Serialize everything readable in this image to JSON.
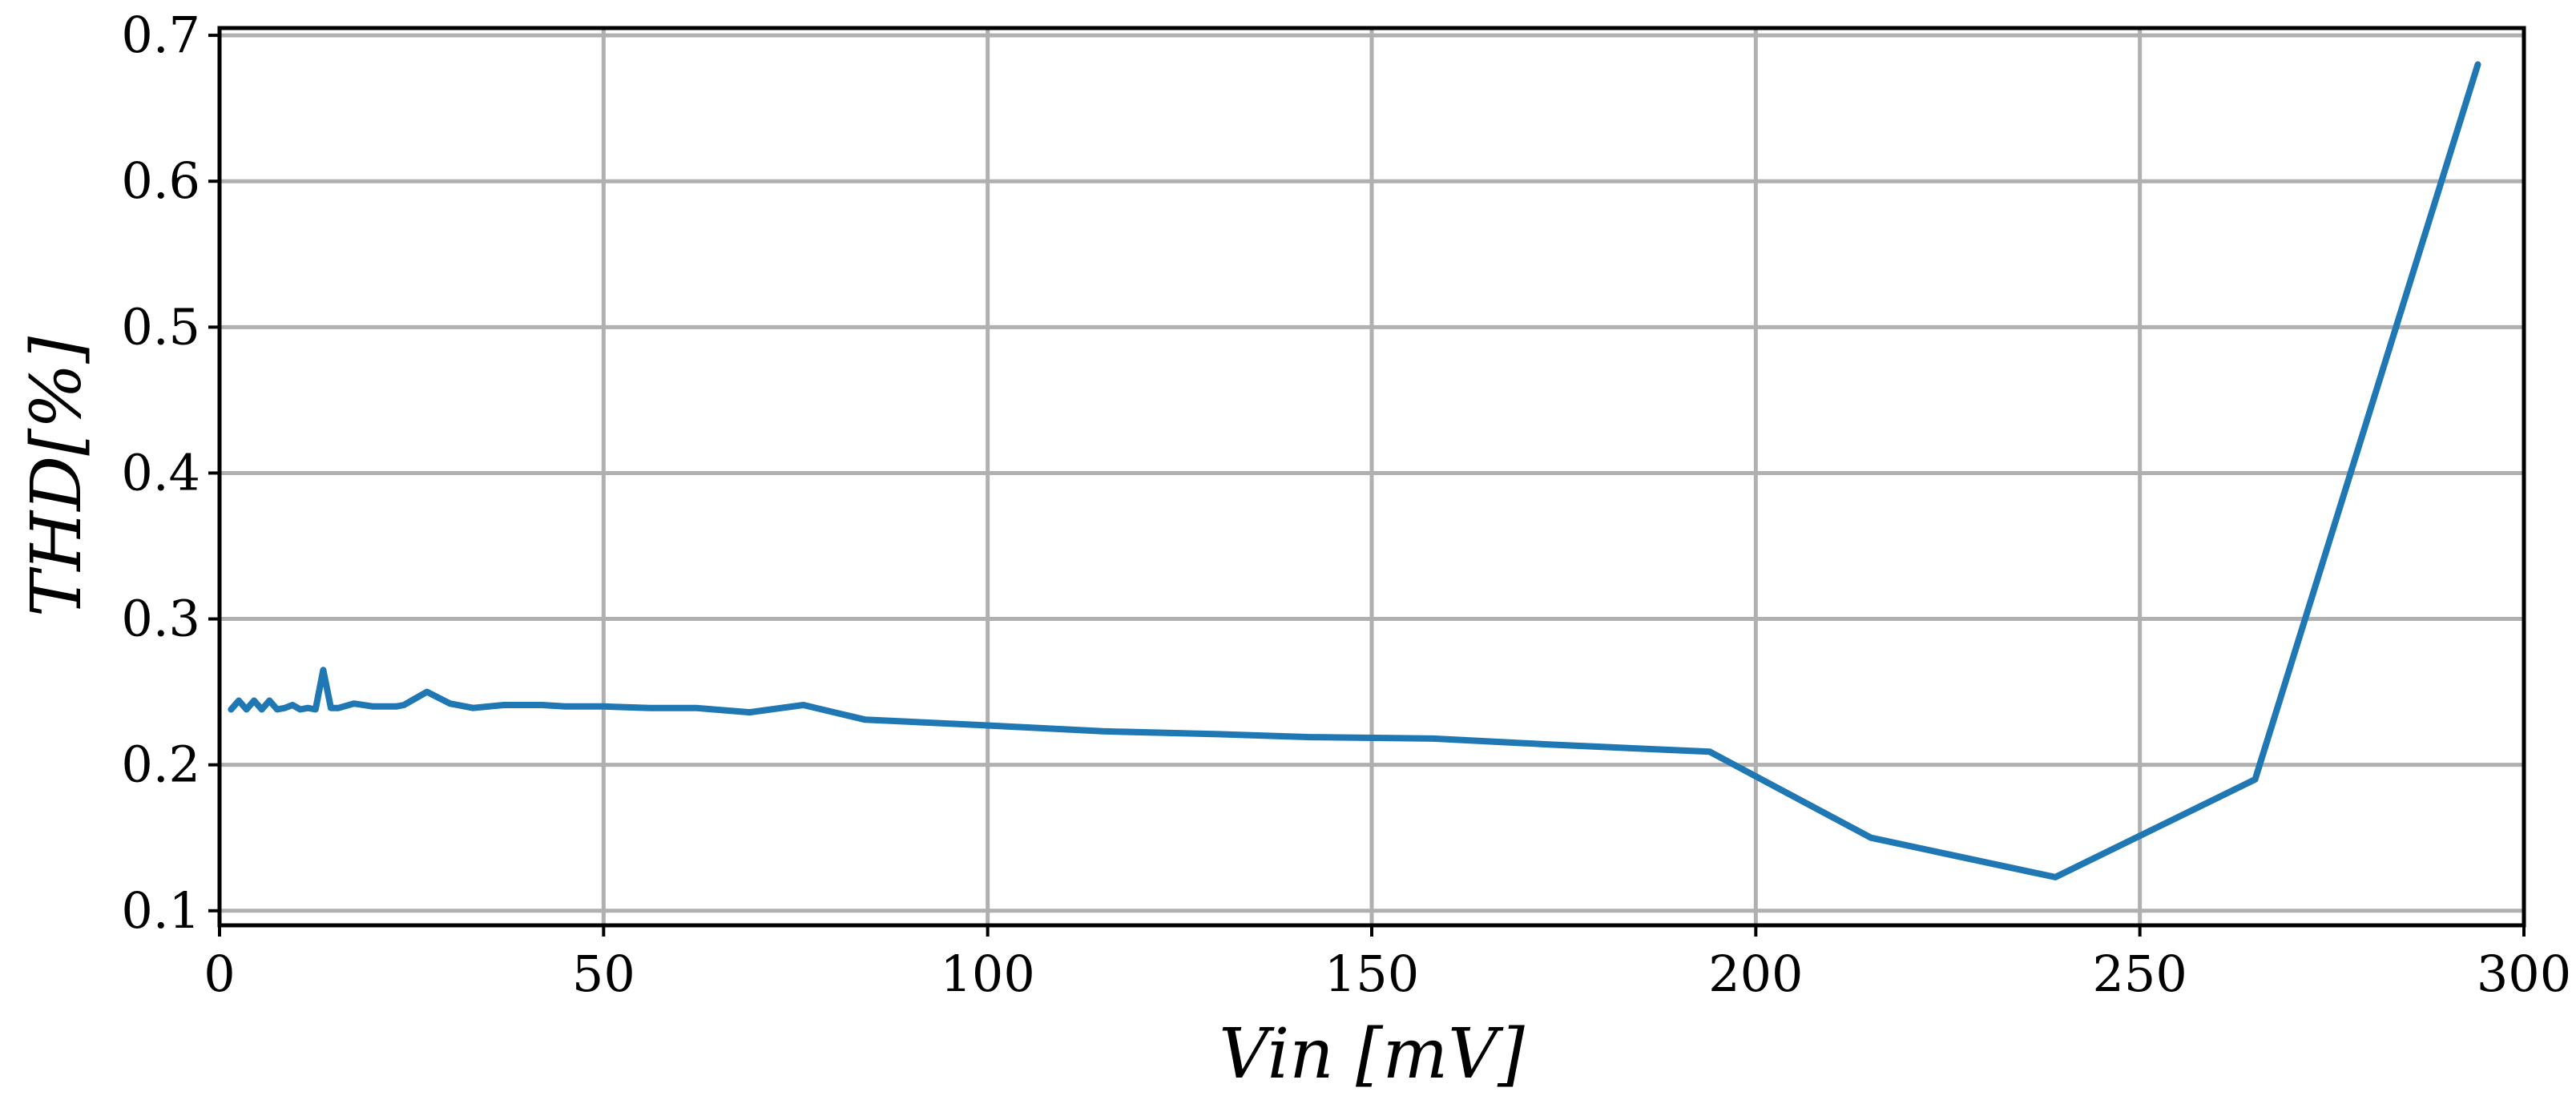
{
  "chart_data": {
    "type": "line",
    "title": "",
    "xlabel": "Vin [mV]",
    "ylabel": "THD[%]",
    "xlim": [
      0,
      300
    ],
    "ylim": [
      0.09,
      0.705
    ],
    "xticks": [
      0,
      50,
      100,
      150,
      200,
      250,
      300
    ],
    "xtick_labels": [
      "0",
      "50",
      "100",
      "150",
      "200",
      "250",
      "300"
    ],
    "yticks": [
      0.1,
      0.2,
      0.3,
      0.4,
      0.5,
      0.6,
      0.7
    ],
    "ytick_labels": [
      "0.1",
      "0.2",
      "0.3",
      "0.4",
      "0.5",
      "0.6",
      "0.7"
    ],
    "grid": true,
    "colors": {
      "series": "#1f77b4",
      "grid": "#b0b0b0",
      "axis": "#000000"
    },
    "series": [
      {
        "x": [
          1.5,
          2.5,
          3.5,
          4.5,
          5.5,
          6.5,
          7.5,
          8.5,
          9.5,
          10.5,
          11.5,
          12.5,
          13.5,
          14.5,
          15.5,
          17.5,
          20,
          23,
          24,
          27,
          30,
          33,
          37,
          42,
          45,
          50,
          56,
          62,
          69,
          76,
          84,
          100,
          115,
          130,
          142,
          158,
          173,
          194,
          215,
          239,
          265,
          294
        ],
        "y": [
          0.238,
          0.244,
          0.238,
          0.244,
          0.238,
          0.244,
          0.238,
          0.239,
          0.241,
          0.238,
          0.239,
          0.238,
          0.265,
          0.239,
          0.239,
          0.242,
          0.24,
          0.24,
          0.241,
          0.25,
          0.242,
          0.239,
          0.241,
          0.241,
          0.24,
          0.24,
          0.239,
          0.239,
          0.236,
          0.241,
          0.231,
          0.227,
          0.223,
          0.221,
          0.219,
          0.218,
          0.214,
          0.209,
          0.15,
          0.123,
          0.19,
          0.68
        ]
      }
    ]
  }
}
